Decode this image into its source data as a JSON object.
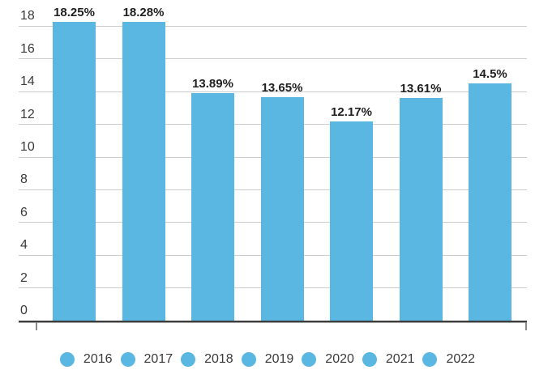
{
  "chart_data": {
    "type": "bar",
    "title": "",
    "xlabel": "",
    "ylabel": "",
    "categories": [
      "2016",
      "2017",
      "2018",
      "2019",
      "2020",
      "2021",
      "2022"
    ],
    "values": [
      18.25,
      18.28,
      13.89,
      13.65,
      12.17,
      13.61,
      14.5
    ],
    "labels": [
      "18.25%",
      "18.28%",
      "13.89%",
      "13.65%",
      "12.17%",
      "13.61%",
      "14.5%"
    ],
    "ylim": [
      0,
      18
    ],
    "yticks": [
      0,
      2,
      4,
      6,
      8,
      10,
      12,
      14,
      16,
      18
    ],
    "grid": true,
    "legend_position": "bottom",
    "colors": {
      "bar": "#5ab7e2",
      "gridline": "#cccccc",
      "axis_line": "#3d3d3d",
      "value_label": "#1f1f1f",
      "tick_label": "#3a3a3a",
      "background": "#ffffff"
    }
  }
}
